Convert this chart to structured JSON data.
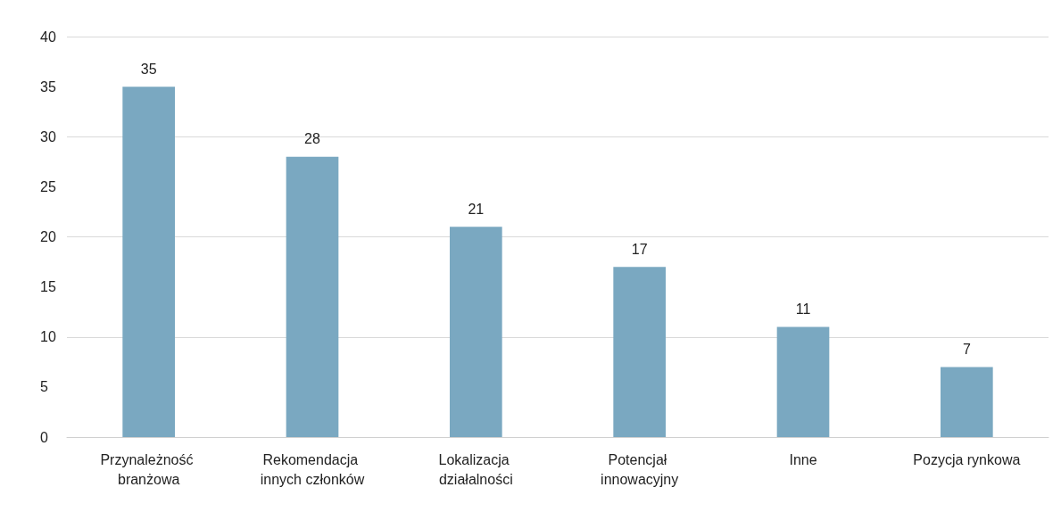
{
  "chart_data": {
    "type": "bar",
    "categories": [
      "Przynależność branżowa",
      "Rekomendacja innych członków",
      "Lokalizacja działalności",
      "Potencjał innowacyjny",
      "Inne",
      "Pozycja rynkowa"
    ],
    "values": [
      35,
      28,
      21,
      17,
      11,
      7
    ],
    "color": "#7aa8c1",
    "ylim": [
      0,
      40
    ],
    "yticks": [
      0,
      5,
      10,
      15,
      20,
      25,
      30,
      35,
      40
    ],
    "grid": "y",
    "data_labels": true
  }
}
